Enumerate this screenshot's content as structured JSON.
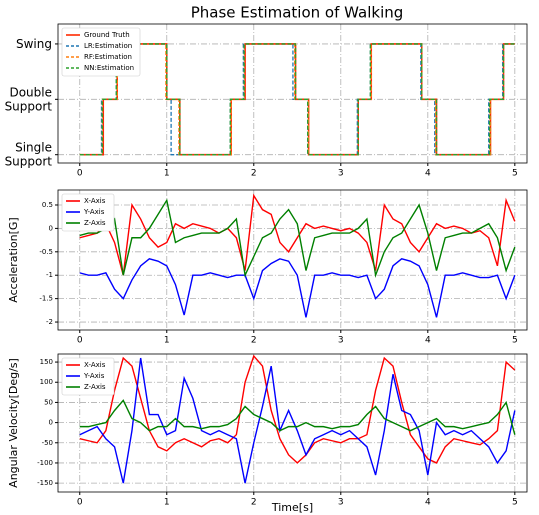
{
  "chart_data": [
    {
      "type": "line",
      "title": "Phase Estimation of Walking",
      "drawstyle": "steps-post",
      "legend": "upper left",
      "grid": true,
      "xlim": [
        -0.25,
        5.14
      ],
      "xticks": [
        0,
        1,
        2,
        3,
        4,
        5
      ],
      "ylim": [
        -0.15,
        2.36
      ],
      "yticks": [
        {
          "value": 0,
          "label": "Single\nSupport"
        },
        {
          "value": 1,
          "label": "Double\nSupport"
        },
        {
          "value": 2,
          "label": "Swing"
        }
      ],
      "series": [
        {
          "name": "Ground Truth",
          "color": "#ff2a00",
          "linestyle": "solid",
          "x": [
            0,
            0.27,
            0.43,
            1.0,
            1.15,
            1.74,
            1.9,
            2.48,
            2.63,
            3.2,
            3.35,
            3.93,
            4.1,
            4.72,
            4.87,
            5.0
          ],
          "values": [
            0,
            1,
            2,
            1,
            0,
            1,
            2,
            1,
            0,
            1,
            2,
            1,
            0,
            1,
            2,
            2
          ]
        },
        {
          "name": "LR:Estimation",
          "color": "#1f77b4",
          "linestyle": "dashed",
          "x": [
            0,
            0.25,
            0.42,
            1.0,
            1.05,
            1.73,
            1.88,
            2.45,
            2.62,
            3.19,
            3.34,
            3.92,
            4.08,
            4.7,
            4.86,
            5.0
          ],
          "values": [
            0,
            1,
            2,
            1,
            0,
            1,
            2,
            1,
            0,
            1,
            2,
            1,
            0,
            1,
            2,
            2
          ]
        },
        {
          "name": "RF:Estimation",
          "color": "#ff7f0e",
          "linestyle": "dashed",
          "x": [
            0,
            0.26,
            0.43,
            0.99,
            1.14,
            1.74,
            1.89,
            2.47,
            2.63,
            3.2,
            3.35,
            3.93,
            4.09,
            4.72,
            4.87,
            5.0
          ],
          "values": [
            0,
            1,
            2,
            1,
            0,
            1,
            2,
            1,
            0,
            1,
            2,
            1,
            0,
            1,
            2,
            2
          ]
        },
        {
          "name": "NN:Estimation",
          "color": "#2ca02c",
          "linestyle": "dashed",
          "x": [
            0,
            0.26,
            0.42,
            1.0,
            1.15,
            1.73,
            1.89,
            2.48,
            2.62,
            3.2,
            3.34,
            3.93,
            4.1,
            4.71,
            4.87,
            5.0
          ],
          "values": [
            0,
            1,
            2,
            1,
            0,
            1,
            2,
            1,
            0,
            1,
            2,
            1,
            0,
            1,
            2,
            2
          ]
        }
      ]
    },
    {
      "type": "line",
      "y_label": "Acceleration[G]",
      "legend": "upper left",
      "grid": true,
      "xlim": [
        -0.25,
        5.14
      ],
      "xticks": [
        0,
        1,
        2,
        3,
        4,
        5
      ],
      "ylim": [
        -2.17,
        0.82
      ],
      "yticks": [
        -2.0,
        -1.5,
        -1.0,
        -0.5,
        0.0,
        0.5
      ],
      "x": [
        0,
        0.1,
        0.2,
        0.3,
        0.4,
        0.5,
        0.6,
        0.7,
        0.8,
        0.9,
        1.0,
        1.1,
        1.2,
        1.3,
        1.4,
        1.5,
        1.6,
        1.7,
        1.8,
        1.9,
        2.0,
        2.1,
        2.2,
        2.3,
        2.4,
        2.5,
        2.6,
        2.7,
        2.8,
        2.9,
        3.0,
        3.1,
        3.2,
        3.3,
        3.4,
        3.5,
        3.6,
        3.7,
        3.8,
        3.9,
        4.0,
        4.1,
        4.2,
        4.3,
        4.4,
        4.5,
        4.6,
        4.7,
        4.8,
        4.9,
        5.0
      ],
      "series": [
        {
          "name": "X-Axis",
          "color": "#ff0000",
          "values": [
            -0.2,
            -0.15,
            -0.1,
            0.1,
            -0.3,
            -1.0,
            0.5,
            0.2,
            -0.2,
            -0.4,
            -0.3,
            0.1,
            0.0,
            0.1,
            0.05,
            0.0,
            -0.1,
            0.0,
            -0.2,
            -0.9,
            0.7,
            0.4,
            0.3,
            -0.3,
            -0.5,
            -0.2,
            0.1,
            0.0,
            0.05,
            0.0,
            -0.05,
            0.0,
            -0.1,
            -0.3,
            -0.9,
            0.5,
            0.2,
            0.1,
            -0.3,
            -0.5,
            -0.2,
            0.1,
            0.0,
            0.05,
            0.0,
            -0.1,
            -0.05,
            -0.2,
            -0.8,
            0.6,
            0.15
          ]
        },
        {
          "name": "Y-Axis",
          "color": "#0000ff",
          "values": [
            -0.95,
            -1.0,
            -1.0,
            -0.95,
            -1.3,
            -1.5,
            -1.1,
            -0.8,
            -0.65,
            -0.7,
            -0.8,
            -1.2,
            -1.85,
            -1.0,
            -1.0,
            -0.95,
            -1.0,
            -1.05,
            -1.0,
            -1.0,
            -1.5,
            -0.9,
            -0.75,
            -0.65,
            -0.7,
            -1.0,
            -1.9,
            -1.0,
            -1.0,
            -0.95,
            -1.0,
            -1.0,
            -1.05,
            -1.0,
            -1.5,
            -1.3,
            -0.8,
            -0.65,
            -0.7,
            -0.8,
            -1.2,
            -1.9,
            -1.0,
            -1.0,
            -0.95,
            -1.0,
            -1.05,
            -1.05,
            -1.0,
            -1.5,
            -1.0
          ]
        },
        {
          "name": "Z-Axis",
          "color": "#008000",
          "values": [
            -0.15,
            -0.1,
            -0.1,
            0.0,
            0.2,
            -1.0,
            -0.2,
            -0.2,
            0.0,
            0.3,
            0.6,
            -0.3,
            -0.2,
            -0.15,
            -0.1,
            -0.1,
            -0.1,
            0.0,
            0.2,
            -1.0,
            -0.6,
            -0.2,
            -0.1,
            0.2,
            0.4,
            0.1,
            -0.9,
            -0.2,
            -0.15,
            -0.1,
            -0.1,
            -0.1,
            0.0,
            0.2,
            -1.0,
            -0.5,
            -0.2,
            -0.1,
            0.2,
            0.5,
            -0.1,
            -0.9,
            -0.2,
            -0.15,
            -0.1,
            -0.1,
            0.0,
            0.1,
            -0.2,
            -0.9,
            -0.4
          ]
        }
      ]
    },
    {
      "type": "line",
      "y_label": "Angular Velocity[Deg/s]",
      "x_label": "Time[s]",
      "legend": "upper left",
      "grid": true,
      "xlim": [
        -0.25,
        5.14
      ],
      "xticks": [
        0,
        1,
        2,
        3,
        4,
        5
      ],
      "ylim": [
        -172,
        170
      ],
      "yticks": [
        -150,
        -100,
        -50,
        0,
        50,
        100,
        150
      ],
      "x": [
        0,
        0.1,
        0.2,
        0.3,
        0.4,
        0.5,
        0.6,
        0.7,
        0.8,
        0.9,
        1.0,
        1.1,
        1.2,
        1.3,
        1.4,
        1.5,
        1.6,
        1.7,
        1.8,
        1.9,
        2.0,
        2.1,
        2.2,
        2.3,
        2.4,
        2.5,
        2.6,
        2.7,
        2.8,
        2.9,
        3.0,
        3.1,
        3.2,
        3.3,
        3.4,
        3.5,
        3.6,
        3.7,
        3.8,
        3.9,
        4.0,
        4.1,
        4.2,
        4.3,
        4.4,
        4.5,
        4.6,
        4.7,
        4.8,
        4.9,
        5.0
      ],
      "series": [
        {
          "name": "X-Axis",
          "color": "#ff0000",
          "values": [
            -40,
            -45,
            -50,
            -20,
            80,
            160,
            140,
            60,
            -20,
            -60,
            -70,
            -50,
            -40,
            -50,
            -60,
            -45,
            -40,
            -50,
            -30,
            100,
            165,
            140,
            30,
            -40,
            -80,
            -100,
            -80,
            -50,
            -40,
            -45,
            -50,
            -40,
            -40,
            -30,
            80,
            160,
            140,
            50,
            -30,
            -60,
            -90,
            -100,
            -60,
            -40,
            -45,
            -50,
            -55,
            -40,
            -20,
            150,
            130
          ]
        },
        {
          "name": "Y-Axis",
          "color": "#0000ff",
          "values": [
            -30,
            -20,
            -10,
            -40,
            -60,
            -150,
            -20,
            160,
            20,
            20,
            -30,
            -20,
            110,
            60,
            -20,
            -30,
            -20,
            -30,
            -40,
            -150,
            -50,
            40,
            140,
            -20,
            30,
            -20,
            -80,
            -40,
            -30,
            -20,
            -30,
            -20,
            -40,
            -60,
            -130,
            -20,
            120,
            30,
            20,
            -20,
            -130,
            0,
            -30,
            -20,
            -30,
            -20,
            -40,
            -60,
            -100,
            -70,
            30
          ]
        },
        {
          "name": "Z-Axis",
          "color": "#008000",
          "values": [
            -10,
            -10,
            -5,
            0,
            30,
            55,
            10,
            0,
            -20,
            -10,
            -10,
            10,
            -10,
            -10,
            -15,
            -10,
            -10,
            -5,
            10,
            40,
            20,
            10,
            0,
            -20,
            -10,
            -10,
            0,
            -10,
            -10,
            -15,
            -10,
            -10,
            -5,
            20,
            40,
            10,
            0,
            -10,
            -20,
            -10,
            0,
            10,
            -10,
            -10,
            -15,
            -10,
            -5,
            0,
            20,
            50,
            -30
          ]
        }
      ]
    }
  ]
}
